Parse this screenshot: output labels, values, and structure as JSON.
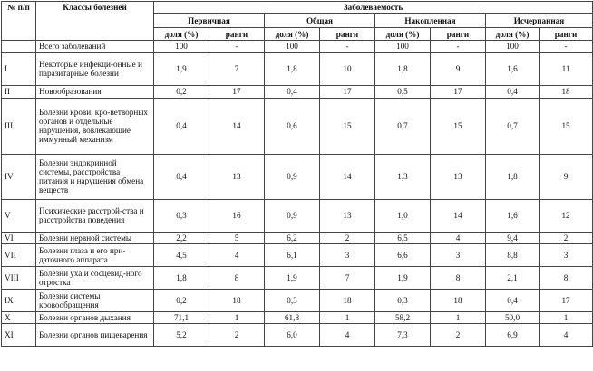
{
  "table": {
    "header": {
      "num": "№ п/п",
      "classes": "Классы болезней",
      "morbidity": "Заболеваемость",
      "groups": [
        "Первичная",
        "Общая",
        "Накопленная",
        "Исчерпанная"
      ],
      "share": "доля (%)",
      "rank": "ранги"
    },
    "rows": [
      {
        "cls": "",
        "name": "Всего заболеваний",
        "vals": [
          "100",
          "-",
          "100",
          "-",
          "100",
          "-",
          "100",
          "-"
        ]
      },
      {
        "cls": "I",
        "name": "Некоторые инфекци-онные и паразитарные болезни",
        "vals": [
          "1,9",
          "7",
          "1,8",
          "10",
          "1,8",
          "9",
          "1,6",
          "11"
        ]
      },
      {
        "cls": "II",
        "name": "Новообразования",
        "vals": [
          "0,2",
          "17",
          "0,4",
          "17",
          "0,5",
          "17",
          "0,4",
          "18"
        ]
      },
      {
        "cls": "III",
        "name": "Болезни крови, кро-ветворных органов и отдельные нарушения, вовлекающие иммунный механизм",
        "vals": [
          "0,4",
          "14",
          "0,6",
          "15",
          "0,7",
          "15",
          "0,7",
          "15"
        ]
      },
      {
        "cls": "IV",
        "name": "Болезни эндокринной системы, расстройства питания и нарушения обмена веществ",
        "vals": [
          "0,4",
          "13",
          "0,9",
          "14",
          "1,3",
          "13",
          "1,8",
          "9"
        ]
      },
      {
        "cls": "V",
        "name": "Психические расстрой-ства и расстройства поведения",
        "vals": [
          "0,3",
          "16",
          "0,9",
          "13",
          "1,0",
          "14",
          "1,6",
          "12"
        ]
      },
      {
        "cls": "VI",
        "name": "Болезни нервной системы",
        "vals": [
          "2,2",
          "5",
          "6,2",
          "2",
          "6,5",
          "4",
          "9,4",
          "2"
        ]
      },
      {
        "cls": "VII",
        "name": "Болезни глаза и его при-даточного аппарата",
        "vals": [
          "4,5",
          "4",
          "6,1",
          "3",
          "6,6",
          "3",
          "8,8",
          "3"
        ]
      },
      {
        "cls": "VIII",
        "name": "Болезни уха и сосцевид-ного отростка",
        "vals": [
          "1,8",
          "8",
          "1,9",
          "7",
          "1,9",
          "8",
          "2,1",
          "8"
        ]
      },
      {
        "cls": "IX",
        "name": "Болезни системы кровообращения",
        "vals": [
          "0,2",
          "18",
          "0,3",
          "18",
          "0,3",
          "18",
          "0,4",
          "17"
        ]
      },
      {
        "cls": "X",
        "name": "Болезни органов дыхания",
        "vals": [
          "71,1",
          "1",
          "61,8",
          "1",
          "58,2",
          "1",
          "50,0",
          "1"
        ]
      },
      {
        "cls": "XI",
        "name": "Болезни органов пищеварения",
        "vals": [
          "5,2",
          "2",
          "6,0",
          "4",
          "7,3",
          "2",
          "6,9",
          "4"
        ]
      }
    ]
  }
}
